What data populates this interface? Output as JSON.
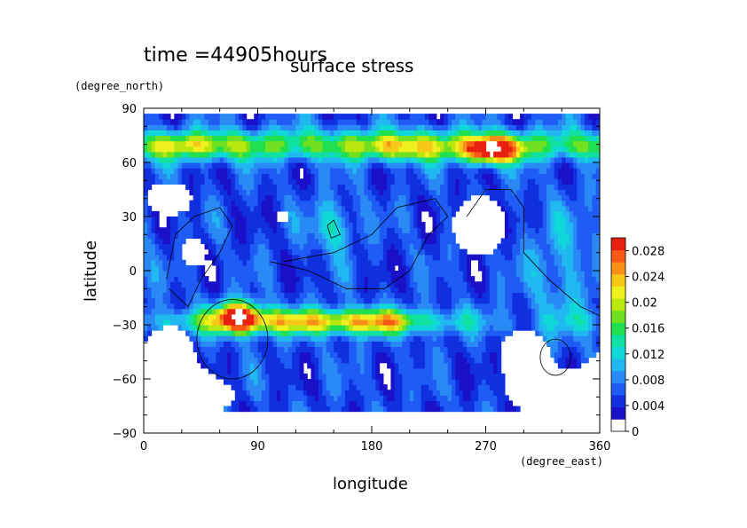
{
  "chart_data": {
    "type": "heatmap",
    "title": "surface stress",
    "subtitle": "time =44905hours",
    "xlabel": "longitude",
    "xunit": "(degree_east)",
    "ylabel": "latitude",
    "yunit": "(degree_north)",
    "xlim": [
      0,
      360
    ],
    "ylim": [
      -90,
      90
    ],
    "xticks": [
      "0",
      "90",
      "180",
      "270",
      "360"
    ],
    "yticks": [
      "−90",
      "−60",
      "−30",
      "0",
      "30",
      "60",
      "90"
    ],
    "colorbar": {
      "ticks": [
        "0",
        "0.004",
        "0.008",
        "0.012",
        "0.016",
        "0.02",
        "0.024",
        "0.028"
      ],
      "range": [
        0,
        0.03
      ],
      "colors": [
        "#ffffff",
        "#1a10c8",
        "#1030e0",
        "#1e5cf5",
        "#2a8af5",
        "#20b8f0",
        "#10d8d8",
        "#10e0a0",
        "#20e050",
        "#70e020",
        "#b8e810",
        "#f0f020",
        "#f8c818",
        "#f89018",
        "#f85818",
        "#e82010"
      ]
    },
    "grid": false,
    "features": [
      {
        "name": "northern jet band",
        "lat": 70,
        "lon_range": [
          0,
          360
        ],
        "value": 0.018
      },
      {
        "name": "northern peak",
        "lat": 67,
        "lon": 275,
        "value": 0.03
      },
      {
        "name": "southern jet band",
        "lat": -28,
        "lon_range": [
          40,
          220
        ],
        "value": 0.024
      },
      {
        "name": "southern peak",
        "lat": -25,
        "lon": 75,
        "value": 0.03
      }
    ]
  }
}
